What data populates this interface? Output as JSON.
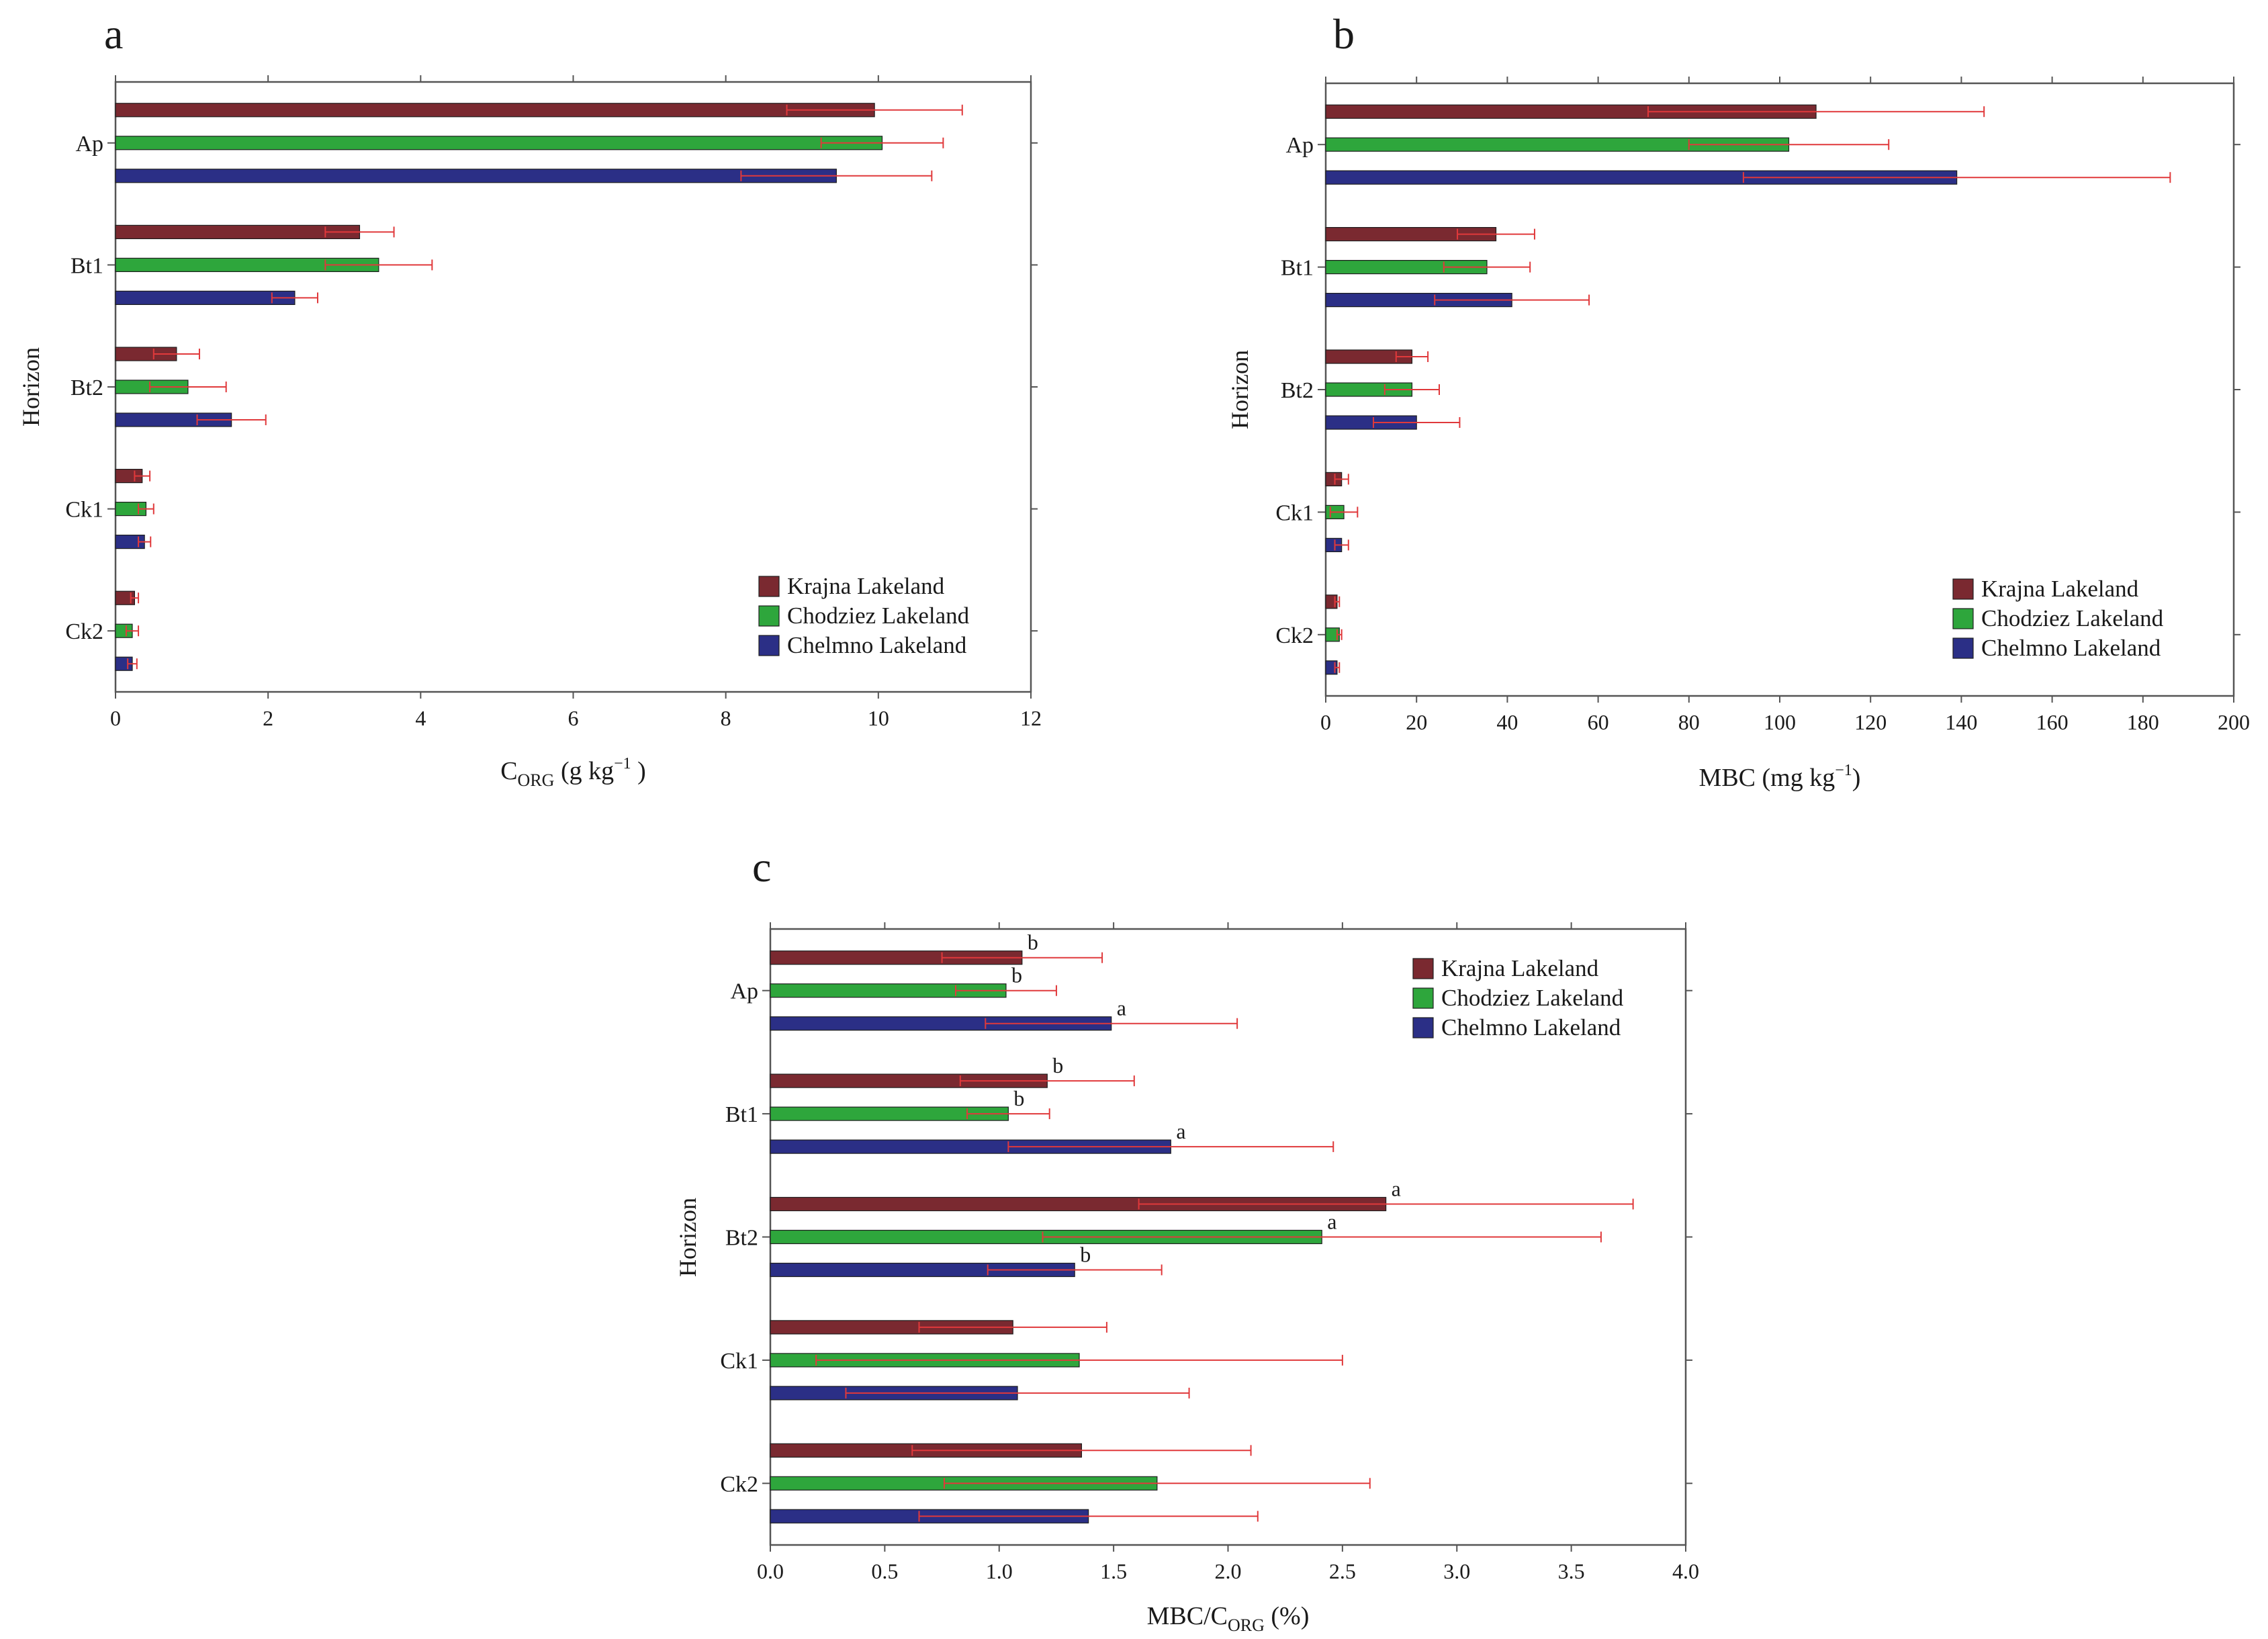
{
  "colors": {
    "krajna": "#7a2930",
    "chodziez": "#2ea63c",
    "chelmno": "#2b2f86",
    "error": "#e0393b"
  },
  "chart_data": [
    {
      "panel": "a",
      "type": "bar",
      "orientation": "horizontal",
      "ylabel": "Horizon",
      "xlabel_main": "C",
      "xlabel_sub": "ORG",
      "xlabel_rest": " (g kg",
      "xlabel_sup": "−1",
      "xlabel_end": " )",
      "xlim": [
        0,
        12
      ],
      "xticks": [
        "0",
        "2",
        "4",
        "6",
        "8",
        "10",
        "12"
      ],
      "categories": [
        "Ap",
        "Bt1",
        "Bt2",
        "Ck1",
        "Ck2"
      ],
      "legend_position": "bottom-right",
      "series": [
        {
          "name": "Krajna Lakeland",
          "values": [
            9.95,
            3.2,
            0.8,
            0.35,
            0.25
          ],
          "errors": [
            1.15,
            0.45,
            0.3,
            0.1,
            0.05
          ]
        },
        {
          "name": "Chodziez Lakeland",
          "values": [
            10.05,
            3.45,
            0.95,
            0.4,
            0.22
          ],
          "errors": [
            0.8,
            0.7,
            0.5,
            0.1,
            0.08
          ]
        },
        {
          "name": "Chelmno Lakeland",
          "values": [
            9.45,
            2.35,
            1.52,
            0.38,
            0.22
          ],
          "errors": [
            1.25,
            0.3,
            0.45,
            0.08,
            0.06
          ]
        }
      ]
    },
    {
      "panel": "b",
      "type": "bar",
      "orientation": "horizontal",
      "ylabel": "Horizon",
      "xlabel_main": "MBC (mg kg",
      "xlabel_sup": "−1",
      "xlabel_end": ")",
      "xlim": [
        0,
        200
      ],
      "xticks": [
        "0",
        "20",
        "40",
        "60",
        "80",
        "100",
        "120",
        "140",
        "160",
        "180",
        "200"
      ],
      "categories": [
        "Ap",
        "Bt1",
        "Bt2",
        "Ck1",
        "Ck2"
      ],
      "legend_position": "bottom-right",
      "series": [
        {
          "name": "Krajna Lakeland",
          "values": [
            108,
            37.5,
            19,
            3.5,
            2.5
          ],
          "errors": [
            37,
            8.5,
            3.5,
            1.5,
            0.5
          ]
        },
        {
          "name": "Chodziez Lakeland",
          "values": [
            102,
            35.5,
            19,
            4,
            3
          ],
          "errors": [
            22,
            9.5,
            6,
            3,
            0.5
          ]
        },
        {
          "name": "Chelmno Lakeland",
          "values": [
            139,
            41,
            20,
            3.5,
            2.5
          ],
          "errors": [
            47,
            17,
            9.5,
            1.5,
            0.5
          ]
        }
      ]
    },
    {
      "panel": "c",
      "type": "bar",
      "orientation": "horizontal",
      "ylabel": "Horizon",
      "xlabel_main": "MBC/C",
      "xlabel_sub": "ORG",
      "xlabel_end": " (%)",
      "xlim": [
        0,
        4
      ],
      "xticks": [
        "0.0",
        "0.5",
        "1.0",
        "1.5",
        "2.0",
        "2.5",
        "3.0",
        "3.5",
        "4.0"
      ],
      "categories": [
        "Ap",
        "Bt1",
        "Bt2",
        "Ck1",
        "Ck2"
      ],
      "legend_position": "top-right",
      "series": [
        {
          "name": "Krajna Lakeland",
          "values": [
            1.1,
            1.21,
            2.69,
            1.06,
            1.36
          ],
          "errors": [
            0.35,
            0.38,
            1.08,
            0.41,
            0.74
          ],
          "labels": [
            "b",
            "b",
            "a",
            "",
            ""
          ]
        },
        {
          "name": "Chodziez Lakeland",
          "values": [
            1.03,
            1.04,
            2.41,
            1.35,
            1.69
          ],
          "errors": [
            0.22,
            0.18,
            1.22,
            1.15,
            0.93
          ],
          "labels": [
            "b",
            "b",
            "a",
            "",
            ""
          ]
        },
        {
          "name": "Chelmno Lakeland",
          "values": [
            1.49,
            1.75,
            1.33,
            1.08,
            1.39
          ],
          "errors": [
            0.55,
            0.71,
            0.38,
            0.75,
            0.74
          ],
          "labels": [
            "a",
            "a",
            "b",
            "",
            ""
          ]
        }
      ]
    }
  ]
}
